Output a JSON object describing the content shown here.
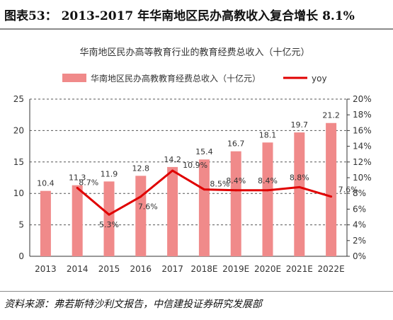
{
  "header": {
    "text": "图表53：  2013-2017 年华南地区民办高教收入复合增长 8.1%"
  },
  "source": "资料来源：弗若斯特沙利文报告，中信建投证券研究发展部",
  "colors": {
    "bar": "#f08a8a",
    "line": "#e00000",
    "grid": "#555555"
  },
  "chart_data": {
    "type": "bar",
    "title": "华南地区民办高等教育行业的教育经费总收入（十亿元）",
    "categories": [
      "2013",
      "2014",
      "2015",
      "2016",
      "2017",
      "2018E",
      "2019E",
      "2020E",
      "2021E",
      "2022E"
    ],
    "series": [
      {
        "name": "华南地区民办高教教育经费总收入（十亿元）",
        "type": "bar",
        "axis": "left",
        "values": [
          10.4,
          11.3,
          11.9,
          12.8,
          14.2,
          15.4,
          16.7,
          18.1,
          19.7,
          21.2
        ],
        "labels": [
          "10.4",
          "11.3",
          "11.9",
          "12.8",
          "14.2",
          "15.4",
          "16.7",
          "18.1",
          "19.7",
          "21.2"
        ]
      },
      {
        "name": "yoy",
        "type": "line",
        "axis": "right",
        "values": [
          null,
          8.7,
          5.3,
          7.6,
          10.9,
          8.5,
          8.4,
          8.4,
          8.8,
          7.6
        ],
        "labels": [
          "",
          "8.7%",
          "5.3%",
          "7.6%",
          "10.9%",
          "8.5%",
          "8.4%",
          "8.4%",
          "8.8%",
          "7.6%"
        ]
      }
    ],
    "y_left": {
      "min": 0,
      "max": 25,
      "ticks": [
        "0",
        "5",
        "10",
        "15",
        "20",
        "25"
      ]
    },
    "y_right": {
      "min": 0,
      "max": 20,
      "ticks": [
        "0%",
        "2%",
        "4%",
        "6%",
        "8%",
        "10%",
        "12%",
        "14%",
        "16%",
        "18%",
        "20%"
      ]
    },
    "grid": true,
    "legend": "top"
  }
}
